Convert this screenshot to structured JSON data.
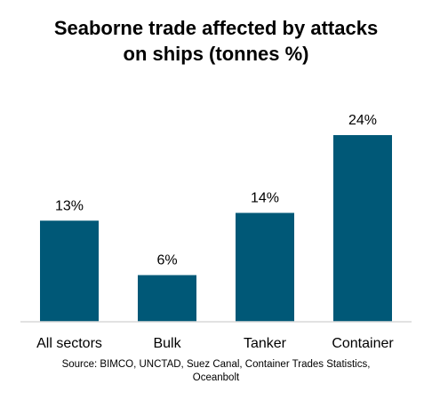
{
  "chart_data": {
    "type": "bar",
    "title_lines": [
      "Seaborne trade affected by attacks",
      "on ships (tonnes %)"
    ],
    "categories": [
      "All sectors",
      "Bulk",
      "Tanker",
      "Container"
    ],
    "values": [
      13,
      6,
      14,
      24
    ],
    "data_labels": [
      "13%",
      "6%",
      "14%",
      "24%"
    ],
    "unit": "%",
    "bar_color": "#005877",
    "xlabel": "",
    "ylabel": "",
    "ylim": [
      0,
      24
    ],
    "grid": false,
    "legend": false
  },
  "source_lines": [
    "Source: BIMCO, UNCTAD, Suez Canal, Container Trades Statistics,",
    "Oceanbolt"
  ]
}
